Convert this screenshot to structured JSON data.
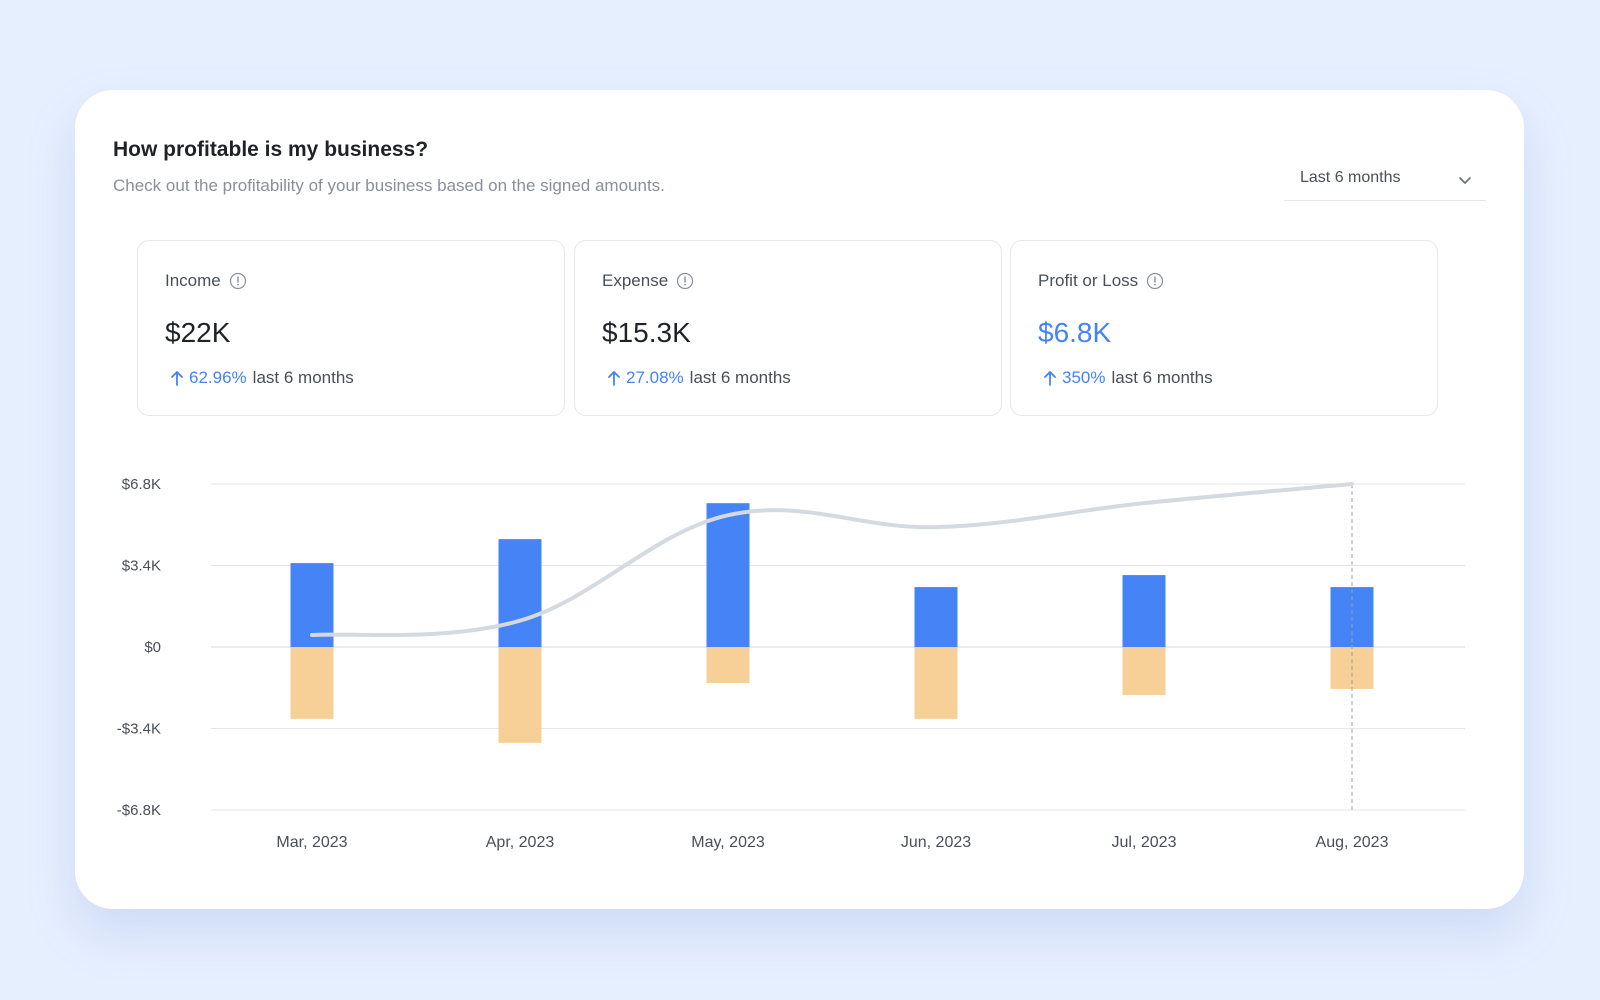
{
  "header": {
    "title": "How profitable is my business?",
    "subtitle": "Check out the profitability of your business based on the signed amounts."
  },
  "range_select": {
    "value": "Last 6 months",
    "icon": "chevron-down-icon"
  },
  "stats": [
    {
      "label": "Income",
      "value": "$22K",
      "change": "62.96%",
      "period": "last 6 months",
      "value_color": "#1f2328"
    },
    {
      "label": "Expense",
      "value": "$15.3K",
      "change": "27.08%",
      "period": "last 6 months",
      "value_color": "#1f2328"
    },
    {
      "label": "Profit or Loss",
      "value": "$6.8K",
      "change": "350%",
      "period": "last 6 months",
      "value_color": "#4483f5"
    }
  ],
  "colors": {
    "income": "#4584f6",
    "expense": "#f7d098",
    "profit_line": "#d5dae1",
    "accent": "#4483f5"
  },
  "chart_data": {
    "type": "bar",
    "categories": [
      "Mar, 2023",
      "Apr, 2023",
      "May, 2023",
      "Jun, 2023",
      "Jul, 2023",
      "Aug, 2023"
    ],
    "series": [
      {
        "values": [
          3.5,
          4.5,
          6.0,
          2.5,
          3.0,
          2.5
        ]
      },
      {
        "values": [
          -3.0,
          -4.0,
          -1.5,
          -3.0,
          -2.0,
          -1.75
        ]
      },
      {
        "type": "line",
        "values": [
          0.5,
          1.1,
          5.5,
          5.0,
          6.0,
          6.8
        ]
      }
    ],
    "y_ticks": [
      "$6.8K",
      "$3.4K",
      "$0",
      "-$3.4K",
      "-$6.8K"
    ],
    "ylim": [
      -6.8,
      6.8
    ],
    "grid": true,
    "highlight_category": "Aug, 2023"
  }
}
